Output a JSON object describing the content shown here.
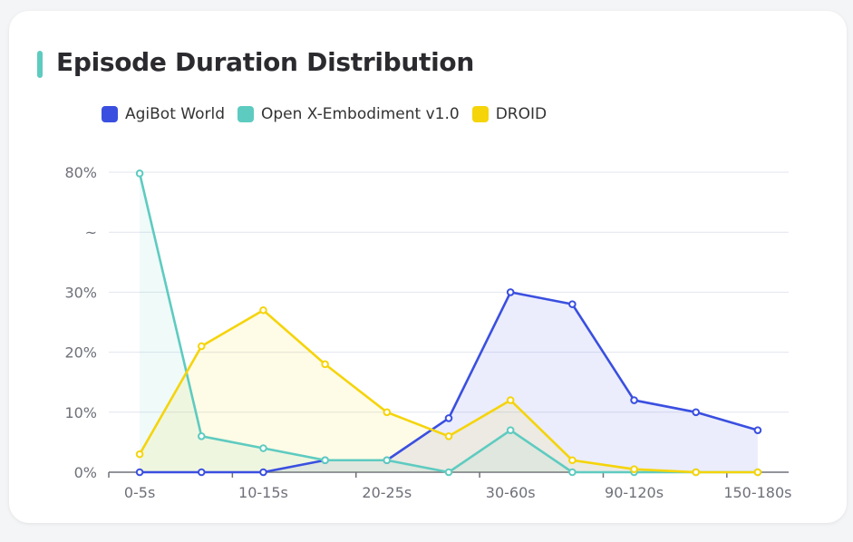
{
  "chart_data": {
    "type": "line",
    "title": "Episode Duration Distribution",
    "categories": [
      "0-5s",
      "",
      "10-15s",
      "",
      "20-25s",
      "",
      "30-60s",
      "",
      "90-120s",
      "",
      "150-180s"
    ],
    "y_tick_labels": [
      "0%",
      "10%",
      "20%",
      "30%",
      "~",
      "80%"
    ],
    "y_axis_break": "between 30% and 80%",
    "grid": "horizontal",
    "legend_position": "top",
    "area_fill": true,
    "series": [
      {
        "name": "AgiBot World",
        "color": "#3a4fe0",
        "values": [
          0,
          0,
          0,
          2,
          2,
          9,
          30,
          28,
          12,
          10,
          7
        ]
      },
      {
        "name": "Open X-Embodiment v1.0",
        "color": "#5ecbc0",
        "values": [
          79.5,
          6,
          4,
          2,
          2,
          0,
          7,
          0,
          0,
          0,
          0
        ]
      },
      {
        "name": "DROID",
        "color": "#f5d40a",
        "values": [
          3,
          21,
          27,
          18,
          10,
          6,
          12,
          2,
          0.5,
          0,
          0
        ]
      }
    ]
  }
}
